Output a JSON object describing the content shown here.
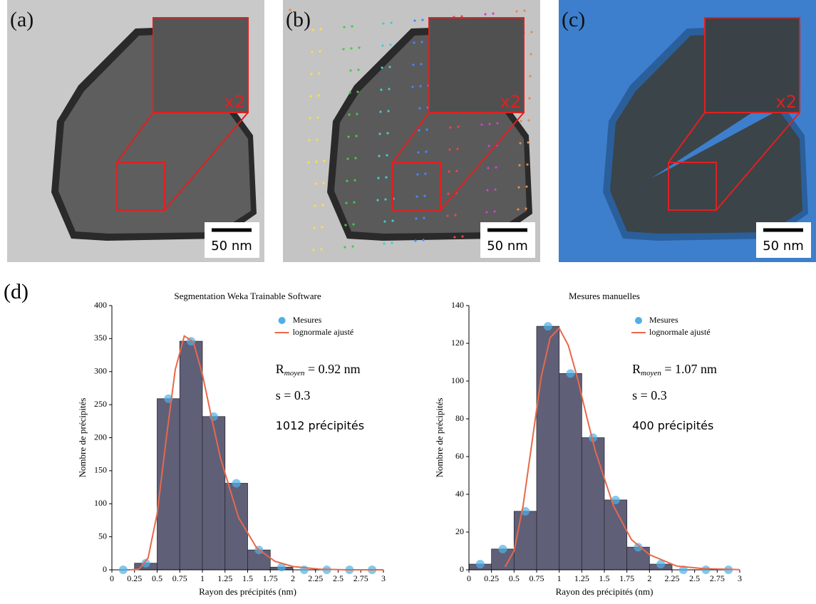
{
  "panels": [
    {
      "label": "(a)",
      "zoom": "x2",
      "scale": "50 nm"
    },
    {
      "label": "(b)",
      "zoom": "x2",
      "scale": "50 nm"
    },
    {
      "label": "(c)",
      "zoom": "x2",
      "scale": "50 nm"
    }
  ],
  "section_label": "(d)",
  "chart_data": [
    {
      "type": "histogram",
      "title": "Segmentation Weka Trainable Software",
      "xlabel": "Rayon des précipités (nm)",
      "ylabel": "Nombre de précipités",
      "bins": [
        0,
        0.25,
        0.5,
        0.75,
        1,
        1.25,
        1.5,
        1.75,
        2,
        2.25,
        2.5,
        2.75,
        3
      ],
      "counts": [
        0,
        10,
        259,
        346,
        232,
        131,
        30,
        4,
        0,
        0,
        0,
        0
      ],
      "color": "#5f5f78",
      "xlim": [
        0,
        3
      ],
      "ylim": [
        0,
        400
      ],
      "xticks": [
        0,
        0.25,
        0.5,
        0.75,
        1,
        1.25,
        1.5,
        1.75,
        2,
        2.25,
        2.5,
        2.75,
        3
      ],
      "yticks": [
        0,
        50,
        100,
        150,
        200,
        250,
        300,
        350,
        400
      ],
      "legend": "upper right",
      "series": [
        {
          "name": "Mesures",
          "type": "scatter",
          "color": "#4fb0e6",
          "x": [
            0.125,
            0.375,
            0.625,
            0.875,
            1.125,
            1.375,
            1.625,
            1.875,
            2.125,
            2.375,
            2.625,
            2.875
          ],
          "values": [
            0,
            10,
            259,
            346,
            232,
            131,
            30,
            4,
            0,
            0,
            0,
            0
          ]
        },
        {
          "name": "lognormale ajusté",
          "type": "line",
          "color": "#e8684a",
          "x": [
            0.2,
            0.3,
            0.4,
            0.5,
            0.6,
            0.7,
            0.8,
            0.9,
            1.0,
            1.1,
            1.2,
            1.4,
            1.6,
            1.8,
            2.0,
            2.3,
            2.6,
            3.0
          ],
          "values": [
            0,
            1,
            18,
            85,
            198,
            303,
            354,
            345,
            296,
            231,
            169,
            79,
            33,
            13,
            5,
            1,
            0,
            0
          ]
        }
      ],
      "annotations": [
        {
          "main": "R",
          "sub": "moyen",
          "rest": " = 0.92 nm"
        },
        {
          "main": "s = 0.3"
        },
        {
          "main": "1012 précipités"
        }
      ]
    },
    {
      "type": "histogram",
      "title": "Mesures manuelles",
      "xlabel": "Rayon des précipités (nm)",
      "ylabel": "Nombre de précipités",
      "bins": [
        0,
        0.25,
        0.5,
        0.75,
        1,
        1.25,
        1.5,
        1.75,
        2,
        2.25,
        2.5,
        2.75,
        3
      ],
      "counts": [
        3,
        11,
        31,
        129,
        104,
        70,
        37,
        12,
        3,
        0,
        0,
        0
      ],
      "color": "#5f5f78",
      "xlim": [
        0,
        3
      ],
      "ylim": [
        0,
        140
      ],
      "xticks": [
        0,
        0.25,
        0.5,
        0.75,
        1,
        1.25,
        1.5,
        1.75,
        2,
        2.25,
        2.5,
        2.75,
        3
      ],
      "yticks": [
        0,
        20,
        40,
        60,
        80,
        100,
        120,
        140
      ],
      "legend": "upper right",
      "series": [
        {
          "name": "Mesures",
          "type": "scatter",
          "color": "#4fb0e6",
          "x": [
            0.125,
            0.375,
            0.625,
            0.875,
            1.125,
            1.375,
            1.625,
            1.875,
            2.125,
            2.375,
            2.625,
            2.875
          ],
          "values": [
            3,
            11,
            31,
            129,
            104,
            70,
            37,
            12,
            3,
            0,
            0,
            0
          ]
        },
        {
          "name": "lognormale ajusté",
          "type": "line",
          "color": "#e8684a",
          "x": [
            0.4,
            0.5,
            0.6,
            0.7,
            0.8,
            0.9,
            1.0,
            1.1,
            1.2,
            1.3,
            1.4,
            1.6,
            1.8,
            2.0,
            2.3,
            2.6,
            3.0
          ],
          "values": [
            1.5,
            10,
            34,
            68,
            102,
            123,
            128,
            119,
            102,
            82,
            63,
            34,
            16,
            8,
            2,
            0.6,
            0.1
          ]
        }
      ],
      "annotations": [
        {
          "main": "R",
          "sub": "moyen",
          "rest": " = 1.07 nm"
        },
        {
          "main": "s = 0.3"
        },
        {
          "main": "400 précipités"
        }
      ]
    }
  ]
}
